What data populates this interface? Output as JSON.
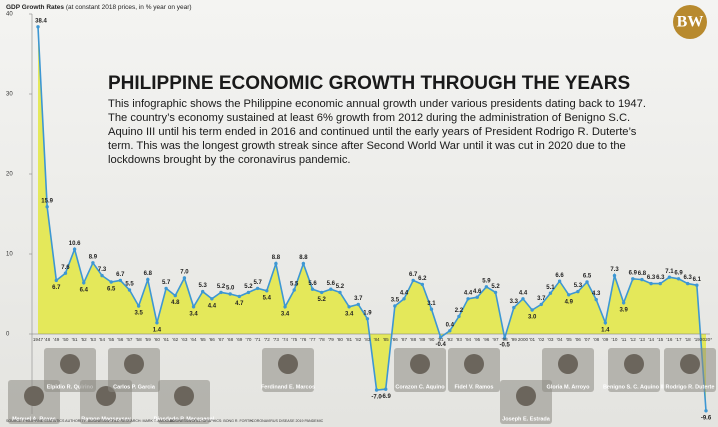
{
  "chart_data": {
    "type": "area-line",
    "logo": "BW",
    "y_axis_label": "GDP Growth Rates",
    "y_axis_sublabel": "(at constant 2018 prices, in % year on year)",
    "title": "PHILIPPINE ECONOMIC GROWTH THROUGH THE YEARS",
    "description_lines": [
      "This infographic shows the Philippine economic annual growth under various presidents dating back to 1947.",
      "The country’s economy sustained at least 6% growth from 2012 during the administration of Benigno S.C.",
      "Aquino III until his term ended in 2016 and continued until the early years of President Rodrigo R. Duterte’s",
      "term. This was the longest growth streak since after Second World War until it was cut in 2020 due to the",
      "lockdowns brought by the coronavirus pandemic."
    ],
    "categories": [
      "1947",
      "'48",
      "'49",
      "'50",
      "'51",
      "'52",
      "'53",
      "'54",
      "'55",
      "'56",
      "'57",
      "'58",
      "'59",
      "'60",
      "'61",
      "'62",
      "'63",
      "'64",
      "'65",
      "'66",
      "'67",
      "'68",
      "'69",
      "'70",
      "'71",
      "'72",
      "'73",
      "'74",
      "'75",
      "'76",
      "'77",
      "'78",
      "'79",
      "'80",
      "'81",
      "'82",
      "'83",
      "'84",
      "'85",
      "'86",
      "'87",
      "'88",
      "'89",
      "'90",
      "'91",
      "'92",
      "'93",
      "'94",
      "'95",
      "'96",
      "'97",
      "'98",
      "'99",
      "2000",
      "'01",
      "'02",
      "'03",
      "'04",
      "'05",
      "'06",
      "'07",
      "'08",
      "'09",
      "'10",
      "'11",
      "'12",
      "'13",
      "'14",
      "'15",
      "'16",
      "'17",
      "'18",
      "'19",
      "2020*"
    ],
    "values": [
      38.4,
      15.9,
      6.7,
      7.6,
      10.6,
      6.4,
      8.9,
      7.3,
      6.5,
      6.7,
      5.5,
      3.5,
      6.8,
      1.4,
      5.7,
      4.8,
      7.0,
      3.4,
      5.3,
      4.4,
      5.2,
      5.0,
      4.7,
      5.2,
      5.7,
      5.4,
      8.8,
      3.4,
      5.5,
      8.8,
      5.6,
      5.2,
      5.6,
      5.2,
      3.4,
      3.7,
      1.9,
      -7.0,
      -6.9,
      3.5,
      4.4,
      6.7,
      6.2,
      3.1,
      -0.4,
      0.4,
      2.2,
      4.4,
      4.6,
      5.9,
      5.2,
      -0.5,
      3.3,
      4.4,
      3.0,
      3.7,
      5.1,
      6.6,
      4.9,
      5.3,
      6.5,
      4.3,
      1.4,
      7.3,
      3.9,
      6.9,
      6.8,
      6.3,
      6.3,
      7.1,
      6.9,
      6.3,
      6.1,
      -9.6
    ],
    "value_labels": [
      "38.4",
      "15.9",
      "6.7",
      "7.6",
      "10.6",
      "6.4",
      "8.9",
      "7.3",
      "6.5",
      "6.7",
      "5.5",
      "3.5",
      "6.8",
      "1.4",
      "5.7",
      "4.8",
      "7.0",
      "3.4",
      "5.3",
      "4.4",
      "5.2",
      "5.0",
      "4.7",
      "5.2",
      "5.7",
      "5.4",
      "8.8",
      "3.4",
      "5.5",
      "8.8",
      "5.6",
      "5.2",
      "5.6",
      "5.2",
      "3.4",
      "3.7",
      "1.9",
      "-7.0",
      "-6.9",
      "3.5",
      "4.4",
      "6.7",
      "6.2",
      "3.1",
      "-0.4",
      "0.4",
      "2.2",
      "4.4",
      "4.6",
      "5.9",
      "5.2",
      "-0.5",
      "3.3",
      "4.4",
      "3.0",
      "3.7",
      "5.1",
      "6.6",
      "4.9",
      "5.3",
      "6.5",
      "4.3",
      "1.4",
      "7.3",
      "3.9",
      "6.9",
      "6.8",
      "6.3",
      "6.3",
      "7.1",
      "6.9",
      "6.3",
      "6.1",
      "-9.6"
    ],
    "line_color": "#3d97d3",
    "fill_color": "#e3e84a",
    "ylim": [
      -10,
      40
    ],
    "yticks": [
      0,
      10,
      20,
      30,
      40
    ],
    "presidents": [
      "Manuel A. Roxas",
      "Elpidio R. Quirino",
      "Ramon Magsaysay",
      "Carlos P. Garcia",
      "Diosdado P. Macapagal",
      "Ferdinand E. Marcos",
      "Corazon C. Aquino",
      "Fidel V. Ramos",
      "Joseph E. Estrada",
      "Gloria M. Arroyo",
      "Benigno S. C. Aquino III",
      "Rodrigo R. Duterte"
    ],
    "footer": [
      "SOURCE: PHILIPPINE STATISTICS AUTHORITY",
      "BUSINESSWORLD RESEARCH: MARK T. AMOGUIS",
      "BUSINESSWORLD GRAPHICS: BONG R. FORTIN",
      "*CORONAVIRUS DISEASE 2019 PANDEMIC"
    ]
  }
}
